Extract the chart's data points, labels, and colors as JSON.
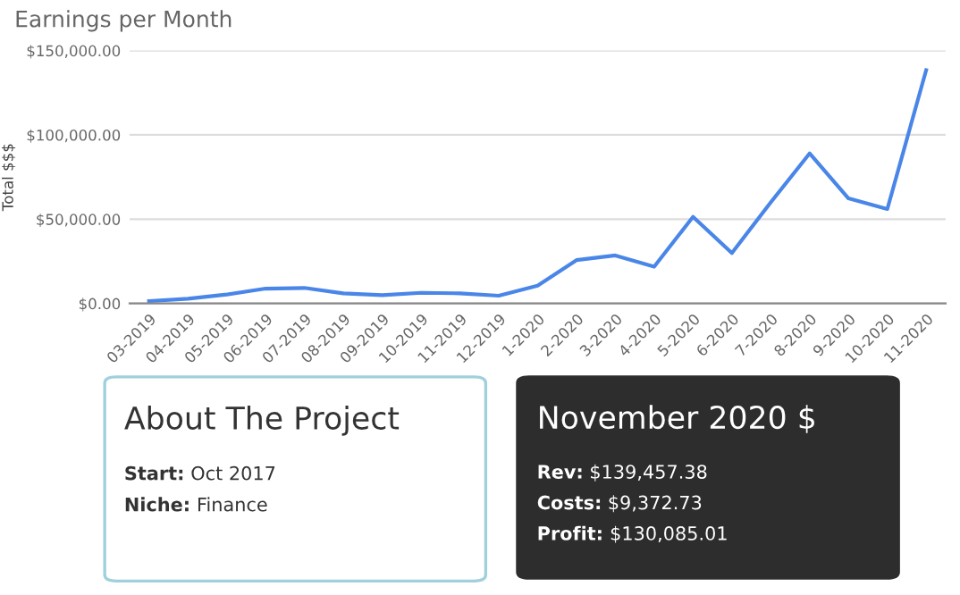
{
  "chart_data": [
    {
      "type": "line",
      "title": "Earnings per Month",
      "ylabel": "Total $$$",
      "categories": [
        "03-2019",
        "04-2019",
        "05-2019",
        "06-2019",
        "07-2019",
        "08-2019",
        "09-2019",
        "10-2019",
        "11-2019",
        "12-2019",
        "1-2020",
        "2-2020",
        "3-2020",
        "4-2020",
        "5-2020",
        "6-2020",
        "7-2020",
        "8-2020",
        "9-2020",
        "10-2020",
        "11-2020"
      ],
      "series": [
        {
          "color": "#4a86e8",
          "values": [
            1400,
            2800,
            5300,
            8800,
            9200,
            6000,
            4900,
            6300,
            6000,
            4600,
            10600,
            25700,
            28500,
            21800,
            51400,
            29900,
            60000,
            89000,
            62300,
            56000,
            138400
          ]
        }
      ],
      "ylim": [
        0,
        150000
      ],
      "yticks": [
        {
          "value": 0,
          "label": "$0.00"
        },
        {
          "value": 50000,
          "label": "$50,000.00"
        },
        {
          "value": 100000,
          "label": "$100,000.00"
        },
        {
          "value": 150000,
          "label": "$150,000.00"
        }
      ],
      "grid": "y",
      "legend": false,
      "marker": "none",
      "line_style": "solid"
    },
    {
      "type": "other",
      "title": "About The Project",
      "annotations": [
        "Start: Oct 2017",
        "Niche: Finance"
      ]
    },
    {
      "type": "other",
      "title": "November 2020 $",
      "annotations": [
        "Rev: $139,457.38",
        "Costs: $9,372.73",
        "Profit: $130,085.01"
      ]
    }
  ]
}
